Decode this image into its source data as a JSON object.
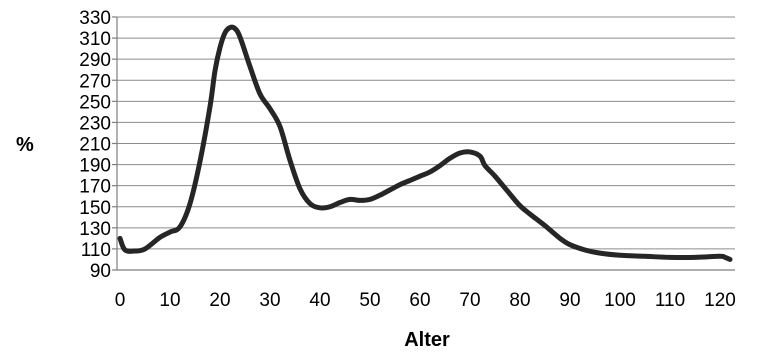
{
  "chart_data": {
    "type": "line",
    "title": "",
    "xlabel": "Alter",
    "ylabel": "%",
    "xlim": [
      0,
      122
    ],
    "ylim": [
      90,
      330
    ],
    "x_ticks": [
      0,
      10,
      20,
      30,
      40,
      50,
      60,
      70,
      80,
      90,
      100,
      110,
      120
    ],
    "y_ticks": [
      90,
      110,
      130,
      150,
      170,
      190,
      210,
      230,
      250,
      270,
      290,
      310,
      330
    ],
    "grid": "horizontal",
    "legend": "none",
    "line_color": "#262626",
    "series": [
      {
        "x": [
          0,
          1,
          3,
          5,
          8,
          10,
          12,
          14,
          16,
          18,
          19,
          20,
          21,
          22,
          23,
          24,
          26,
          28,
          30,
          32,
          34,
          36,
          38,
          40,
          42,
          44,
          46,
          48,
          50,
          52,
          54,
          56,
          58,
          60,
          62,
          64,
          66,
          68,
          70,
          72,
          73,
          75,
          78,
          80,
          82,
          85,
          88,
          90,
          93,
          96,
          100,
          105,
          110,
          115,
          120,
          121,
          122
        ],
        "y": [
          120,
          109,
          108,
          110,
          121,
          126,
          131,
          153,
          193,
          245,
          279,
          301,
          315,
          320,
          319,
          311,
          283,
          257,
          243,
          226,
          194,
          167,
          153,
          149,
          150,
          154,
          157,
          156,
          157,
          161,
          166,
          171,
          175,
          179,
          183,
          189,
          196,
          201,
          202,
          198,
          189,
          179,
          162,
          151,
          143,
          132,
          120,
          114,
          109,
          106,
          104,
          103,
          102,
          102,
          103,
          102,
          100
        ]
      }
    ]
  }
}
